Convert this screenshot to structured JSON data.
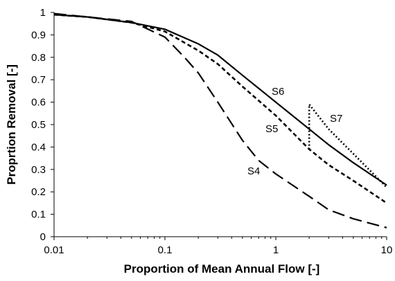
{
  "chart_data": {
    "type": "line",
    "xlabel": "Proportion of Mean Annual Flow [-]",
    "ylabel": "Proprtion Removal [-]",
    "x_scale": "log",
    "xlim": [
      0.01,
      10
    ],
    "ylim": [
      0,
      1
    ],
    "x_ticks": [
      "0.01",
      "0.1",
      "1",
      "10"
    ],
    "y_ticks": [
      "0",
      "0.1",
      "0.2",
      "0.3",
      "0.4",
      "0.5",
      "0.6",
      "0.7",
      "0.8",
      "0.9",
      "1"
    ],
    "grid": false,
    "legend": "none",
    "series": [
      {
        "name": "S6",
        "style": "solid",
        "x": [
          0.01,
          0.02,
          0.05,
          0.1,
          0.2,
          0.3,
          0.5,
          1,
          2,
          3,
          5,
          10
        ],
        "y": [
          0.99,
          0.98,
          0.955,
          0.925,
          0.86,
          0.81,
          0.72,
          0.6,
          0.48,
          0.41,
          0.33,
          0.23
        ]
      },
      {
        "name": "S5",
        "style": "short-dash",
        "x": [
          0.01,
          0.02,
          0.05,
          0.1,
          0.2,
          0.3,
          0.5,
          1,
          2,
          3,
          5,
          10
        ],
        "y": [
          0.99,
          0.98,
          0.955,
          0.915,
          0.83,
          0.77,
          0.67,
          0.54,
          0.39,
          0.32,
          0.25,
          0.15
        ]
      },
      {
        "name": "S4",
        "style": "long-dash",
        "x": [
          0.01,
          0.02,
          0.05,
          0.1,
          0.15,
          0.2,
          0.3,
          0.5,
          0.7,
          1,
          2,
          3,
          5,
          10
        ],
        "y": [
          0.995,
          0.98,
          0.96,
          0.89,
          0.8,
          0.73,
          0.6,
          0.43,
          0.34,
          0.28,
          0.18,
          0.12,
          0.08,
          0.04
        ]
      },
      {
        "name": "S7",
        "style": "dotted",
        "x": [
          2,
          2,
          3,
          5,
          10
        ],
        "y": [
          0.39,
          0.59,
          0.48,
          0.37,
          0.22
        ]
      }
    ]
  }
}
